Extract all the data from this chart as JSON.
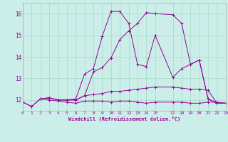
{
  "xlabel": "Windchill (Refroidissement éolien,°C)",
  "background_color": "#cceee8",
  "grid_color": "#aaddcc",
  "line_color": "#990099",
  "xmin": 0,
  "xmax": 23,
  "ymin": 11.5,
  "ymax": 16.5,
  "yticks": [
    12,
    13,
    14,
    15,
    16
  ],
  "xticks": [
    0,
    1,
    2,
    3,
    4,
    5,
    6,
    7,
    8,
    9,
    10,
    11,
    12,
    13,
    14,
    15,
    17,
    18,
    19,
    20,
    21,
    22,
    23
  ],
  "series": [
    [
      0,
      11.9,
      1,
      11.7,
      2,
      12.05,
      3,
      12.0,
      4,
      11.95,
      5,
      11.9,
      6,
      11.85,
      7,
      11.95,
      8,
      11.95,
      9,
      11.95,
      10,
      11.9,
      11,
      11.95,
      12,
      11.95,
      13,
      11.9,
      14,
      11.85,
      15,
      11.9,
      17,
      11.9,
      18,
      11.9,
      19,
      11.85,
      20,
      11.85,
      21,
      11.9,
      22,
      11.9,
      23,
      11.85
    ],
    [
      0,
      11.9,
      1,
      11.7,
      2,
      12.05,
      3,
      12.1,
      4,
      12.0,
      5,
      12.0,
      6,
      12.0,
      7,
      12.2,
      8,
      12.25,
      9,
      12.3,
      10,
      12.4,
      11,
      12.4,
      12,
      12.45,
      13,
      12.5,
      14,
      12.55,
      15,
      12.6,
      17,
      12.6,
      18,
      12.55,
      19,
      12.5,
      20,
      12.5,
      21,
      12.45,
      22,
      11.85,
      23,
      11.85
    ],
    [
      2,
      12.05,
      3,
      12.1,
      4,
      12.0,
      5,
      12.0,
      6,
      12.05,
      7,
      13.2,
      8,
      13.45,
      9,
      14.95,
      10,
      16.1,
      11,
      16.1,
      12,
      15.55,
      13,
      13.65,
      14,
      13.55,
      15,
      15.0,
      17,
      13.05,
      18,
      13.45,
      19,
      13.65,
      20,
      13.85,
      21,
      12.05,
      22,
      11.85,
      23,
      11.85
    ],
    [
      2,
      12.05,
      3,
      12.1,
      4,
      12.0,
      5,
      12.0,
      6,
      12.0,
      7,
      12.2,
      8,
      13.3,
      9,
      13.5,
      10,
      13.95,
      11,
      14.8,
      12,
      15.2,
      13,
      15.55,
      14,
      16.05,
      15,
      16.0,
      17,
      15.95,
      18,
      15.55,
      19,
      13.65,
      20,
      13.85,
      21,
      12.05,
      22,
      11.85,
      23,
      11.85
    ]
  ]
}
